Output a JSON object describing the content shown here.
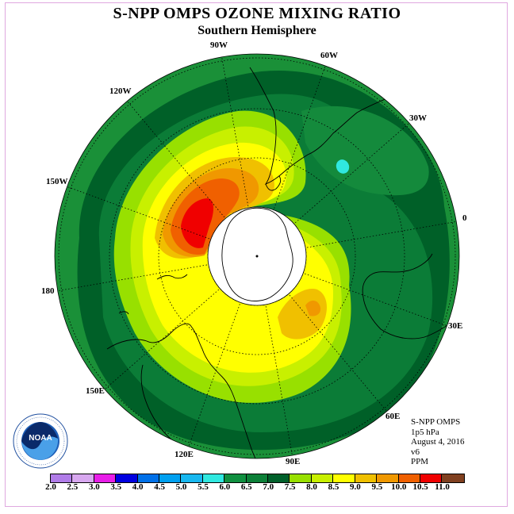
{
  "title": "S-NPP OMPS OZONE MIXING RATIO",
  "subtitle": "Southern Hemisphere",
  "longitude_labels": [
    "90W",
    "60W",
    "30W",
    "0",
    "30E",
    "60E",
    "90E",
    "120E",
    "150E",
    "180",
    "150W",
    "120W"
  ],
  "info": {
    "instrument": "S-NPP OMPS",
    "level": "1p5 hPa",
    "date": "August 4, 2016",
    "version": "v6",
    "units": "PPM"
  },
  "logo": {
    "icon": "noaa-logo",
    "text": "NOAA"
  },
  "colorbar": {
    "ticks": [
      "2.0",
      "2.5",
      "3.0",
      "3.5",
      "4.0",
      "4.5",
      "5.0",
      "5.5",
      "6.0",
      "6.5",
      "7.0",
      "7.5",
      "8.0",
      "8.5",
      "9.0",
      "9.5",
      "10.0",
      "10.5",
      "11.0"
    ],
    "colors": [
      "#b07ce8",
      "#d8a8f0",
      "#e81ee8",
      "#0000e0",
      "#0070e8",
      "#00a0f0",
      "#18b8f0",
      "#30e8e0",
      "#109040",
      "#0c8038",
      "#00602a",
      "#98e000",
      "#c8f000",
      "#ffff00",
      "#f0c000",
      "#f09800",
      "#f06000",
      "#f00000",
      "#804020"
    ]
  }
}
